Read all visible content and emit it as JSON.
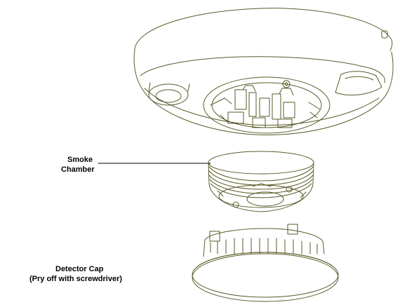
{
  "labels": {
    "smoke_chamber_line1": "Smoke",
    "smoke_chamber_line2": "Chamber",
    "detector_cap_line1": "Detector Cap",
    "detector_cap_line2": "(Pry off with screwdriver)"
  },
  "colors": {
    "line": "#5a5a2a",
    "background": "#ffffff",
    "text": "#000000"
  }
}
